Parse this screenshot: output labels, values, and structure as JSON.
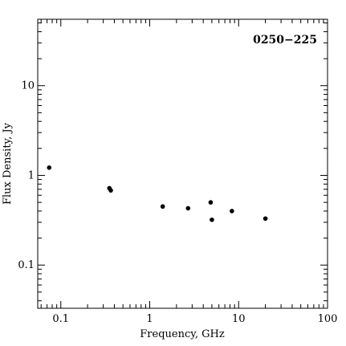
{
  "chart_data": {
    "type": "scatter",
    "title": "0250−225",
    "xlabel": "Frequency, GHz",
    "ylabel": "Flux Density, Jy",
    "xscale": "log",
    "yscale": "log",
    "xlim": [
      0.055,
      100
    ],
    "ylim": [
      0.033,
      55
    ],
    "grid": false,
    "legend": "none",
    "x_ticks": [
      {
        "value": 0.1,
        "label": "0.1"
      },
      {
        "value": 1,
        "label": "1"
      },
      {
        "value": 10,
        "label": "10"
      },
      {
        "value": 100,
        "label": "100"
      }
    ],
    "y_ticks": [
      {
        "value": 0.1,
        "label": "0.1"
      },
      {
        "value": 1,
        "label": "1"
      },
      {
        "value": 10,
        "label": "10"
      }
    ],
    "points": [
      {
        "x": 0.074,
        "y": 1.22
      },
      {
        "x": 0.352,
        "y": 0.72
      },
      {
        "x": 0.365,
        "y": 0.68
      },
      {
        "x": 1.4,
        "y": 0.45
      },
      {
        "x": 2.7,
        "y": 0.43
      },
      {
        "x": 4.85,
        "y": 0.5
      },
      {
        "x": 5.0,
        "y": 0.32
      },
      {
        "x": 8.4,
        "y": 0.4
      },
      {
        "x": 20,
        "y": 0.33
      }
    ]
  }
}
